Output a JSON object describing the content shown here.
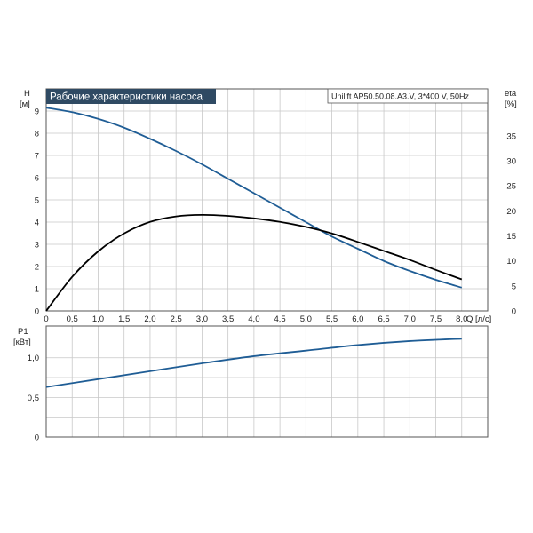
{
  "title": "Рабочие характеристики насоса",
  "model_label": "Unilift AP50.50.08.A3.V, 3*400 V, 50Hz",
  "colors": {
    "title_bg": "#2f4a63",
    "head_curve": "#1f5d95",
    "eta_curve": "#000000",
    "power_curve": "#1f5d95"
  },
  "axes": {
    "h_label": "H",
    "h_unit": "[м]",
    "eta_label": "eta",
    "eta_unit": "[%]",
    "p_label": "P1",
    "p_unit": "[кВт]",
    "q_label": "Q [л/с]"
  },
  "chart_data": [
    {
      "type": "line",
      "title": "Рабочие характеристики насоса",
      "xlabel": "Q [л/с]",
      "ylabel": "H [м]",
      "y2label": "eta [%]",
      "xlim": [
        0,
        8.5
      ],
      "ylim": [
        0,
        10
      ],
      "y2lim": [
        0,
        44.4
      ],
      "grid": true,
      "x_ticks": [
        "0",
        "0,5",
        "1,0",
        "1,5",
        "2,0",
        "2,5",
        "3,0",
        "3,5",
        "4,0",
        "4,5",
        "5,0",
        "5,5",
        "6,0",
        "6,5",
        "7,0",
        "7,5",
        "8,0"
      ],
      "y_ticks": [
        "0",
        "1",
        "2",
        "3",
        "4",
        "5",
        "6",
        "7",
        "8",
        "9"
      ],
      "y2_ticks": [
        "0",
        "5",
        "10",
        "15",
        "20",
        "25",
        "30",
        "35"
      ],
      "series": [
        {
          "name": "H",
          "axis": "left",
          "x": [
            0,
            0.5,
            1.0,
            1.5,
            2.0,
            2.5,
            3.0,
            3.5,
            4.0,
            4.5,
            5.0,
            5.5,
            6.0,
            6.5,
            7.0,
            7.5,
            8.0
          ],
          "y": [
            9.15,
            8.95,
            8.65,
            8.25,
            7.75,
            7.2,
            6.6,
            5.95,
            5.3,
            4.65,
            4.0,
            3.35,
            2.8,
            2.25,
            1.8,
            1.4,
            1.05
          ]
        },
        {
          "name": "eta",
          "axis": "right",
          "x": [
            0,
            0.5,
            1.0,
            1.5,
            2.0,
            2.5,
            3.0,
            3.5,
            4.0,
            4.5,
            5.0,
            5.5,
            6.0,
            6.5,
            7.0,
            7.5,
            8.0
          ],
          "y": [
            0,
            6.8,
            11.9,
            15.5,
            17.8,
            18.9,
            19.2,
            19.0,
            18.5,
            17.8,
            16.8,
            15.5,
            13.8,
            12.0,
            10.2,
            8.2,
            6.3
          ]
        }
      ]
    },
    {
      "type": "line",
      "xlabel": "",
      "ylabel": "P1 [кВт]",
      "xlim": [
        0,
        8.5
      ],
      "ylim": [
        0,
        1.4
      ],
      "grid": true,
      "y_ticks": [
        "0",
        "0,5",
        "1,0"
      ],
      "series": [
        {
          "name": "P1",
          "x": [
            0,
            1,
            2,
            3,
            4,
            5,
            6,
            7,
            8
          ],
          "y": [
            0.63,
            0.73,
            0.83,
            0.93,
            1.02,
            1.09,
            1.16,
            1.21,
            1.24
          ]
        }
      ]
    }
  ]
}
